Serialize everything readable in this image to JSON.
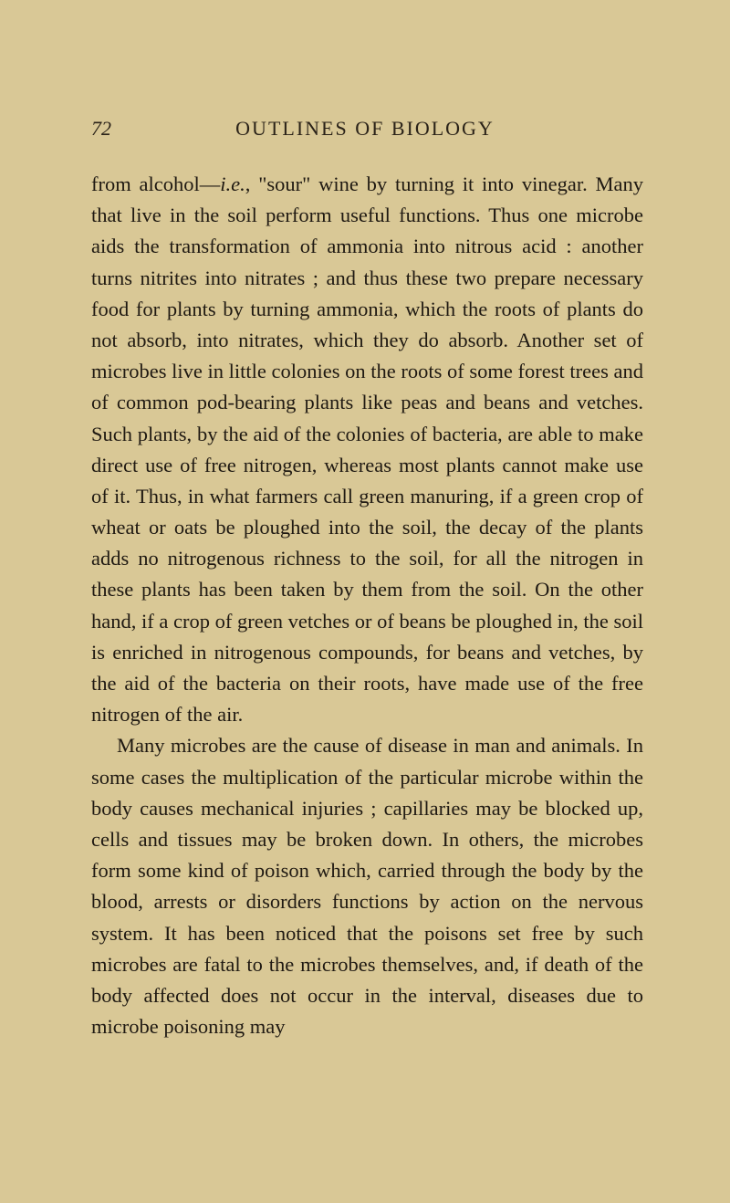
{
  "page": {
    "number": "72",
    "header": "OUTLINES OF BIOLOGY"
  },
  "paragraphs": {
    "p1_part1": "from alcohol—",
    "p1_italic": "i.e.",
    "p1_part2": ", \"sour\" wine by turning it into vinegar. Many that live in the soil perform useful functions. Thus one microbe aids the transformation of ammonia into nitrous acid : another turns nitrites into nitrates ; and thus these two prepare necessary food for plants by turning ammonia, which the roots of plants do not absorb, into nitrates, which they do absorb. Another set of microbes live in little colonies on the roots of some forest trees and of common pod-bearing plants like peas and beans and vetches. Such plants, by the aid of the colonies of bacteria, are able to make direct use of free nitrogen, whereas most plants cannot make use of it. Thus, in what farmers call green manuring, if a green crop of wheat or oats be ploughed into the soil, the decay of the plants adds no nitrogenous richness to the soil, for all the nitrogen in these plants has been taken by them from the soil. On the other hand, if a crop of green vetches or of beans be ploughed in, the soil is enriched in nitrogenous compounds, for beans and vetches, by the aid of the bacteria on their roots, have made use of the free nitrogen of the air.",
    "p2": "Many microbes are the cause of disease in man and animals. In some cases the multiplication of the particular microbe within the body causes mechanical injuries ; capillaries may be blocked up, cells and tissues may be broken down. In others, the microbes form some kind of poison which, carried through the body by the blood, arrests or disorders functions by action on the nervous system. It has been noticed that the poisons set free by such microbes are fatal to the microbes themselves, and, if death of the body affected does not occur in the interval, diseases due to microbe poisoning may"
  },
  "colors": {
    "background": "#d9c896",
    "text": "#1f1912"
  },
  "typography": {
    "body_fontsize": 22.5,
    "header_fontsize": 22,
    "line_height": 1.52
  }
}
